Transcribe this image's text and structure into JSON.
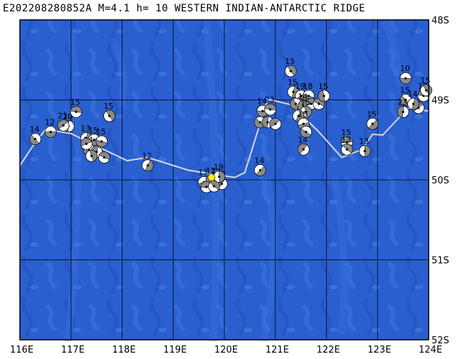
{
  "header": {
    "title": "E202208280852A  M=4.1  h= 10 WESTERN INDIAN-ANTARCTIC RIDGE"
  },
  "map": {
    "lon_range": [
      116,
      124
    ],
    "lat_range": [
      48,
      52
    ],
    "lon_labels": [
      "116E",
      "117E",
      "118E",
      "119E",
      "120E",
      "121E",
      "122E",
      "123E",
      "124E"
    ],
    "lat_labels": [
      "48S",
      "49S",
      "50S",
      "51S",
      "52S"
    ],
    "colors": {
      "ocean": "#2a5fd0",
      "ocean_light": "#3f78df",
      "ridge_line": "#d8d8d8",
      "grid": "#000000",
      "event_marker": "#ffee00"
    },
    "main_event": {
      "lon": 119.75,
      "lat": 49.97
    },
    "ridge_path": [
      [
        116.0,
        49.82
      ],
      [
        116.25,
        49.58
      ],
      [
        116.5,
        49.37
      ],
      [
        117.0,
        49.42
      ],
      [
        117.5,
        49.58
      ],
      [
        118.1,
        49.76
      ],
      [
        118.5,
        49.72
      ],
      [
        119.3,
        49.88
      ],
      [
        120.2,
        49.97
      ],
      [
        120.4,
        49.91
      ],
      [
        120.85,
        48.99
      ],
      [
        121.3,
        49.06
      ],
      [
        121.5,
        49.18
      ],
      [
        121.85,
        49.4
      ],
      [
        122.3,
        49.72
      ],
      [
        122.7,
        49.62
      ],
      [
        122.9,
        49.43
      ],
      [
        123.1,
        49.44
      ],
      [
        123.6,
        49.1
      ],
      [
        124.0,
        49.14
      ]
    ],
    "events": [
      {
        "lon": 116.6,
        "lat": 49.4,
        "label": "12"
      },
      {
        "lon": 116.3,
        "lat": 49.49,
        "label": "14"
      },
      {
        "lon": 116.95,
        "lat": 49.33,
        "label": "20"
      },
      {
        "lon": 116.85,
        "lat": 49.32,
        "label": "21"
      },
      {
        "lon": 117.1,
        "lat": 49.15,
        "label": "15"
      },
      {
        "lon": 117.75,
        "lat": 49.2,
        "label": "15"
      },
      {
        "lon": 117.3,
        "lat": 49.48,
        "label": "13"
      },
      {
        "lon": 117.45,
        "lat": 49.5,
        "label": "15"
      },
      {
        "lon": 117.6,
        "lat": 49.52,
        "label": "15"
      },
      {
        "lon": 117.35,
        "lat": 49.62,
        "label": "14"
      },
      {
        "lon": 117.5,
        "lat": 49.65,
        "label": ""
      },
      {
        "lon": 117.3,
        "lat": 49.55,
        "label": ""
      },
      {
        "lon": 117.65,
        "lat": 49.72,
        "label": ""
      },
      {
        "lon": 117.4,
        "lat": 49.7,
        "label": ""
      },
      {
        "lon": 118.5,
        "lat": 49.82,
        "label": "12"
      },
      {
        "lon": 119.6,
        "lat": 50.03,
        "label": "17"
      },
      {
        "lon": 119.75,
        "lat": 50.01,
        "label": "12"
      },
      {
        "lon": 119.85,
        "lat": 50.02,
        "label": "12"
      },
      {
        "lon": 119.95,
        "lat": 50.05,
        "label": "12"
      },
      {
        "lon": 119.65,
        "lat": 50.09,
        "label": ""
      },
      {
        "lon": 119.8,
        "lat": 50.08,
        "label": ""
      },
      {
        "lon": 119.9,
        "lat": 49.96,
        "label": "19"
      },
      {
        "lon": 120.7,
        "lat": 49.88,
        "label": "14"
      },
      {
        "lon": 120.75,
        "lat": 49.14,
        "label": "14"
      },
      {
        "lon": 120.7,
        "lat": 49.28,
        "label": ""
      },
      {
        "lon": 120.85,
        "lat": 49.28,
        "label": ""
      },
      {
        "lon": 121.0,
        "lat": 49.3,
        "label": ""
      },
      {
        "lon": 120.9,
        "lat": 49.12,
        "label": "23"
      },
      {
        "lon": 121.3,
        "lat": 48.64,
        "label": "15"
      },
      {
        "lon": 121.35,
        "lat": 48.9,
        "label": "15"
      },
      {
        "lon": 121.5,
        "lat": 48.95,
        "label": "19"
      },
      {
        "lon": 121.65,
        "lat": 48.95,
        "label": "18"
      },
      {
        "lon": 121.4,
        "lat": 49.05,
        "label": ""
      },
      {
        "lon": 121.55,
        "lat": 49.08,
        "label": "14"
      },
      {
        "lon": 121.7,
        "lat": 49.05,
        "label": ""
      },
      {
        "lon": 121.85,
        "lat": 49.05,
        "label": ""
      },
      {
        "lon": 121.6,
        "lat": 49.15,
        "label": "15"
      },
      {
        "lon": 121.45,
        "lat": 49.2,
        "label": ""
      },
      {
        "lon": 121.55,
        "lat": 49.3,
        "label": "15"
      },
      {
        "lon": 121.6,
        "lat": 49.4,
        "label": ""
      },
      {
        "lon": 121.95,
        "lat": 48.95,
        "label": "15"
      },
      {
        "lon": 121.55,
        "lat": 49.62,
        "label": "14"
      },
      {
        "lon": 122.4,
        "lat": 49.53,
        "label": "15"
      },
      {
        "lon": 122.4,
        "lat": 49.62,
        "label": "13"
      },
      {
        "lon": 122.75,
        "lat": 49.64,
        "label": "13"
      },
      {
        "lon": 122.9,
        "lat": 49.3,
        "label": "15"
      },
      {
        "lon": 123.55,
        "lat": 48.73,
        "label": "10"
      },
      {
        "lon": 123.55,
        "lat": 49.0,
        "label": "15"
      },
      {
        "lon": 123.5,
        "lat": 49.15,
        "label": "23"
      },
      {
        "lon": 123.8,
        "lat": 49.1,
        "label": ""
      },
      {
        "lon": 123.9,
        "lat": 48.95,
        "label": "13"
      },
      {
        "lon": 123.95,
        "lat": 48.88,
        "label": "15"
      },
      {
        "lon": 123.7,
        "lat": 49.05,
        "label": "14"
      }
    ]
  }
}
